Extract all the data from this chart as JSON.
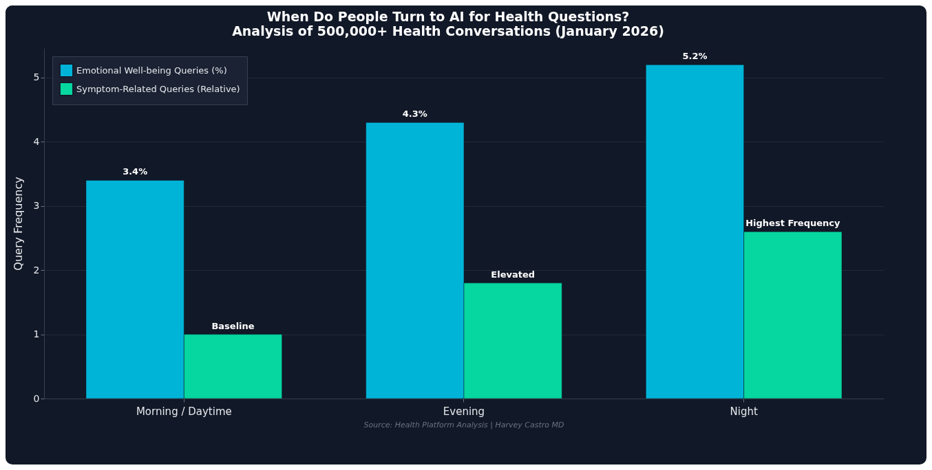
{
  "chart_data": {
    "type": "bar",
    "title": "When Do People Turn to AI for Health Questions?\nAnalysis of 500,000+ Health Conversations (January 2026)",
    "ylabel": "Query Frequency",
    "categories": [
      "Morning / Daytime",
      "Evening",
      "Night"
    ],
    "series": [
      {
        "name": "Emotional Well-being Queries (%)",
        "color": "#00b4d8",
        "values": [
          3.4,
          4.3,
          5.2
        ],
        "value_labels": [
          "3.4%",
          "4.3%",
          "5.2%"
        ]
      },
      {
        "name": "Symptom-Related Queries (Relative)",
        "color": "#06d6a0",
        "values": [
          1.0,
          1.8,
          2.6
        ],
        "value_labels": [
          "Baseline",
          "Elevated",
          "Highest Frequency"
        ]
      }
    ],
    "ylim": [
      0,
      5.46
    ],
    "yticks": [
      0,
      1,
      2,
      3,
      4,
      5
    ],
    "grid": "y",
    "legend": "top left",
    "annotations": [
      "Source: Health Platform Analysis | Harvey Castro MD"
    ]
  }
}
